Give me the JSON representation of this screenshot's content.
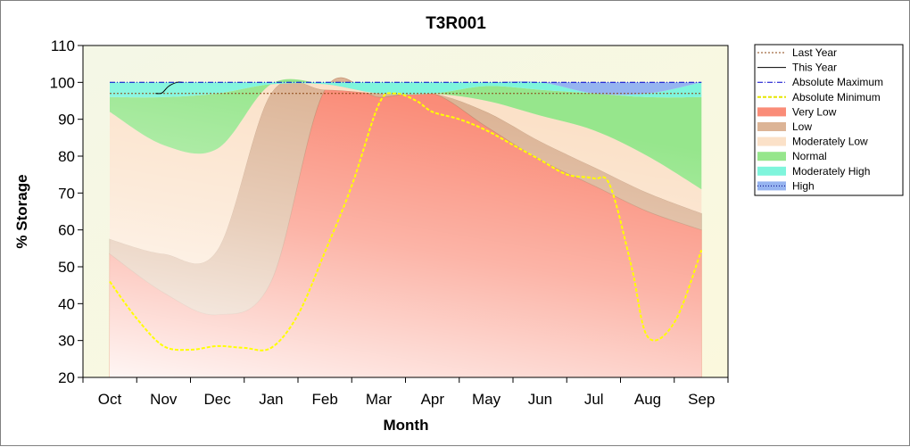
{
  "chart_data": {
    "type": "area",
    "title": "T3R001",
    "xlabel": "Month",
    "ylabel": "% Storage",
    "ylim": [
      20,
      110
    ],
    "yticks": [
      20,
      30,
      40,
      50,
      60,
      70,
      80,
      90,
      100,
      110
    ],
    "categories": [
      "Oct",
      "Nov",
      "Dec",
      "Jan",
      "Feb",
      "Mar",
      "Apr",
      "May",
      "Jun",
      "Jul",
      "Aug",
      "Sep"
    ],
    "legend_position": "right",
    "bands": [
      {
        "name": "Very Low",
        "color": "#fa8c78",
        "lower": [
          20,
          20,
          20,
          20,
          20,
          20,
          20,
          20,
          20,
          20,
          20,
          20
        ],
        "upper": [
          53.5,
          43,
          37,
          46,
          98,
          96,
          97,
          88,
          79,
          72,
          65,
          60
        ]
      },
      {
        "name": "Low",
        "color": "#dcb496",
        "lower": [
          53.5,
          43,
          37,
          46,
          98,
          96,
          97,
          88,
          79,
          72,
          65,
          60
        ],
        "upper": [
          57.5,
          53.5,
          54.5,
          97,
          98,
          97,
          97,
          92,
          84,
          77,
          70,
          64.5
        ]
      },
      {
        "name": "Moderately Low",
        "color": "#fbe1c8",
        "lower": [
          57.5,
          53.5,
          54.5,
          97,
          98,
          97,
          97,
          92,
          84,
          77,
          70,
          64.5
        ],
        "upper": [
          92,
          83,
          82,
          99.5,
          99.5,
          97,
          97,
          95,
          91,
          87,
          80,
          71
        ]
      },
      {
        "name": "Normal",
        "color": "#96e68c",
        "lower": [
          92,
          83,
          82,
          99.5,
          99.5,
          97,
          97,
          95,
          91,
          87,
          80,
          71
        ],
        "upper": [
          96,
          96,
          97,
          99.5,
          99.5,
          97,
          97,
          99,
          98,
          97,
          96,
          96
        ]
      },
      {
        "name": "Moderately High",
        "color": "#7ff5dc",
        "lower": [
          96,
          96,
          97,
          99.5,
          99.5,
          97,
          97,
          99,
          98,
          97,
          96,
          96
        ],
        "upper": [
          100,
          100,
          100,
          100,
          100,
          100,
          100,
          100,
          100,
          97,
          97,
          100
        ]
      },
      {
        "name": "High",
        "color": "#96b4f0",
        "lower": [
          100,
          100,
          100,
          100,
          100,
          100,
          100,
          100,
          100,
          97,
          97,
          100
        ],
        "upper": [
          100,
          100,
          100,
          100,
          100,
          100,
          100,
          100,
          100,
          100,
          100,
          100
        ]
      }
    ],
    "series": [
      {
        "name": "Last Year",
        "style": "dotted",
        "color": "#8b4513",
        "x": [
          0,
          11
        ],
        "y": [
          97,
          97
        ]
      },
      {
        "name": "This Year",
        "style": "solid",
        "color": "#000000",
        "x": [
          0.85,
          0.95,
          1.0,
          1.1,
          1.25,
          1.35
        ],
        "y": [
          97,
          97,
          97.5,
          99,
          100,
          100
        ]
      },
      {
        "name": "Absolute Maximum",
        "style": "dashdot",
        "color": "#0000cc",
        "x": [
          0,
          11
        ],
        "y": [
          100,
          100
        ]
      },
      {
        "name": "Absolute Minimum",
        "style": "dashed",
        "color": "#ffff00",
        "x": [
          0,
          0.5,
          1,
          1.5,
          2,
          2.5,
          3,
          3.5,
          4,
          4.5,
          5,
          5.3,
          5.7,
          6,
          6.5,
          7,
          7.5,
          8,
          8.5,
          9,
          9.3,
          9.7,
          10,
          10.5,
          11
        ],
        "y": [
          46,
          36,
          28.5,
          27.5,
          28.5,
          28,
          28,
          37,
          54,
          72,
          94,
          97,
          95,
          92,
          90,
          87,
          83,
          79,
          75,
          74,
          72,
          50,
          31,
          35,
          54.5
        ]
      }
    ],
    "legend": [
      "Last Year",
      "This Year",
      "Absolute Maximum",
      "Absolute Minimum",
      "Very Low",
      "Low",
      "Moderately Low",
      "Normal",
      "Moderately High",
      "High"
    ]
  }
}
